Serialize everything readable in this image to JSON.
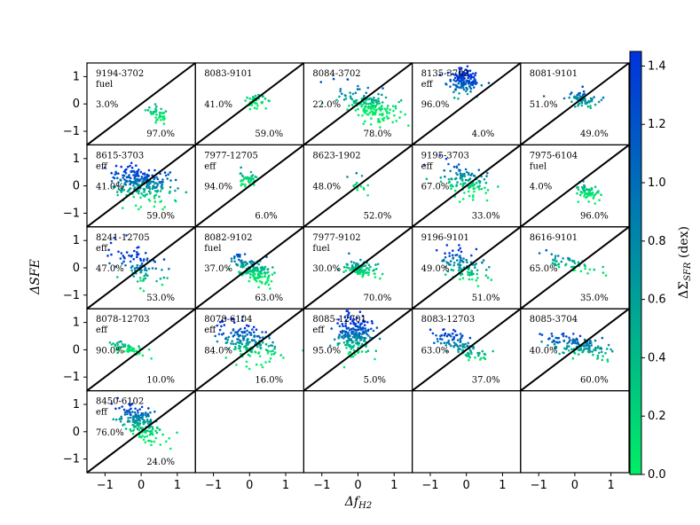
{
  "chart_data": {
    "type": "scatter",
    "xlabel": "Δf_H2",
    "ylabel": "ΔSFE",
    "xlim": [
      -1.5,
      1.5
    ],
    "ylim": [
      -1.5,
      1.5
    ],
    "xticks": [
      "−1",
      "0",
      "1"
    ],
    "yticks": [
      "1",
      "0",
      "−1"
    ],
    "reference_line": "y = x",
    "colorbar": {
      "label": "ΔΣ_SFR (dex)",
      "range": [
        0.0,
        1.45
      ],
      "ticks": [
        "1.4",
        "1.2",
        "1.0",
        "0.8",
        "0.6",
        "0.4",
        "0.2",
        "0.0"
      ],
      "colormap": [
        "#00ee66",
        "#0033dd"
      ]
    },
    "grid": {
      "rows": 5,
      "cols": 5
    },
    "panels": [
      {
        "id": "9194-3702",
        "tag": "fuel",
        "above": "3.0%",
        "below": "97.0%",
        "cx": 0.45,
        "cy": -0.35,
        "sx": 0.16,
        "sy": 0.15,
        "n": 40,
        "tilt": -0.6,
        "hue": 0.1
      },
      {
        "id": "8083-9101",
        "tag": "",
        "above": "41.0%",
        "below": "59.0%",
        "cx": 0.15,
        "cy": 0.1,
        "sx": 0.15,
        "sy": 0.12,
        "n": 45,
        "tilt": 0,
        "hue": 0.1
      },
      {
        "id": "8084-3702",
        "tag": "",
        "above": "22.0%",
        "below": "78.0%",
        "cx": 0.3,
        "cy": -0.05,
        "sx": 0.38,
        "sy": 0.28,
        "n": 180,
        "tilt": -0.4,
        "hue": 0.12
      },
      {
        "id": "8135-3702",
        "tag": "eff",
        "above": "96.0%",
        "below": "4.0%",
        "cx": -0.1,
        "cy": 0.85,
        "sx": 0.22,
        "sy": 0.22,
        "n": 150,
        "tilt": 0,
        "hue": 0.9
      },
      {
        "id": "8081-9101",
        "tag": "",
        "above": "51.0%",
        "below": "49.0%",
        "cx": 0.15,
        "cy": 0.2,
        "sx": 0.25,
        "sy": 0.14,
        "n": 70,
        "tilt": -0.2,
        "hue": 0.55
      },
      {
        "id": "8615-3703",
        "tag": "eff",
        "above": "41.0%",
        "below": "59.0%",
        "cx": 0.0,
        "cy": 0.1,
        "sx": 0.45,
        "sy": 0.3,
        "n": 250,
        "tilt": -0.2,
        "hue": 0.6
      },
      {
        "id": "7977-12705",
        "tag": "eff",
        "above": "94.0%",
        "below": "6.0%",
        "cx": -0.05,
        "cy": 0.25,
        "sx": 0.12,
        "sy": 0.12,
        "n": 40,
        "tilt": 0,
        "hue": 0.15
      },
      {
        "id": "8623-1902",
        "tag": "",
        "above": "48.0%",
        "below": "52.0%",
        "cx": -0.05,
        "cy": 0.0,
        "sx": 0.15,
        "sy": 0.18,
        "n": 14,
        "tilt": -0.5,
        "hue": 0.15
      },
      {
        "id": "9195-3703",
        "tag": "eff",
        "above": "67.0%",
        "below": "33.0%",
        "cx": 0.0,
        "cy": 0.15,
        "sx": 0.35,
        "sy": 0.3,
        "n": 110,
        "tilt": -0.3,
        "hue": 0.3
      },
      {
        "id": "7975-6104",
        "tag": "fuel",
        "above": "4.0%",
        "below": "96.0%",
        "cx": 0.35,
        "cy": -0.25,
        "sx": 0.2,
        "sy": 0.14,
        "n": 60,
        "tilt": -0.3,
        "hue": 0.1
      },
      {
        "id": "8241-12705",
        "tag": "eff",
        "above": "47.0%",
        "below": "53.0%",
        "cx": 0.0,
        "cy": 0.1,
        "sx": 0.35,
        "sy": 0.35,
        "n": 90,
        "tilt": -0.6,
        "hue": 0.7
      },
      {
        "id": "8082-9102",
        "tag": "fuel",
        "above": "37.0%",
        "below": "63.0%",
        "cx": 0.1,
        "cy": -0.1,
        "sx": 0.28,
        "sy": 0.2,
        "n": 150,
        "tilt": -0.5,
        "hue": 0.25
      },
      {
        "id": "7977-9102",
        "tag": "fuel",
        "above": "30.0%",
        "below": "70.0%",
        "cx": 0.05,
        "cy": -0.05,
        "sx": 0.2,
        "sy": 0.17,
        "n": 90,
        "tilt": -0.3,
        "hue": 0.2
      },
      {
        "id": "9196-9101",
        "tag": "",
        "above": "49.0%",
        "below": "51.0%",
        "cx": -0.05,
        "cy": 0.05,
        "sx": 0.33,
        "sy": 0.28,
        "n": 100,
        "tilt": -0.5,
        "hue": 0.45
      },
      {
        "id": "8616-9101",
        "tag": "",
        "above": "65.0%",
        "below": "35.0%",
        "cx": -0.05,
        "cy": 0.1,
        "sx": 0.35,
        "sy": 0.15,
        "n": 50,
        "tilt": -0.3,
        "hue": 0.25
      },
      {
        "id": "8078-12703",
        "tag": "eff",
        "above": "90.0%",
        "below": "10.0%",
        "cx": -0.4,
        "cy": 0.05,
        "sx": 0.25,
        "sy": 0.12,
        "n": 60,
        "tilt": -0.4,
        "hue": 0.1
      },
      {
        "id": "8078-6104",
        "tag": "eff",
        "above": "84.0%",
        "below": "16.0%",
        "cx": -0.05,
        "cy": 0.3,
        "sx": 0.4,
        "sy": 0.35,
        "n": 180,
        "tilt": -0.4,
        "hue": 0.5
      },
      {
        "id": "8085-12701",
        "tag": "eff",
        "above": "95.0%",
        "below": "5.0%",
        "cx": -0.1,
        "cy": 0.55,
        "sx": 0.25,
        "sy": 0.35,
        "n": 220,
        "tilt": 0,
        "hue": 0.65
      },
      {
        "id": "8083-12703",
        "tag": "",
        "above": "63.0%",
        "below": "37.0%",
        "cx": -0.15,
        "cy": 0.15,
        "sx": 0.38,
        "sy": 0.22,
        "n": 110,
        "tilt": -0.5,
        "hue": 0.55
      },
      {
        "id": "8085-3704",
        "tag": "",
        "above": "40.0%",
        "below": "60.0%",
        "cx": 0.1,
        "cy": 0.15,
        "sx": 0.45,
        "sy": 0.17,
        "n": 140,
        "tilt": -0.2,
        "hue": 0.55
      },
      {
        "id": "8450-6102",
        "tag": "eff",
        "above": "76.0%",
        "below": "24.0%",
        "cx": 0.0,
        "cy": 0.3,
        "sx": 0.3,
        "sy": 0.3,
        "n": 180,
        "tilt": -0.7,
        "hue": 0.4
      },
      null,
      null,
      null,
      null
    ]
  }
}
